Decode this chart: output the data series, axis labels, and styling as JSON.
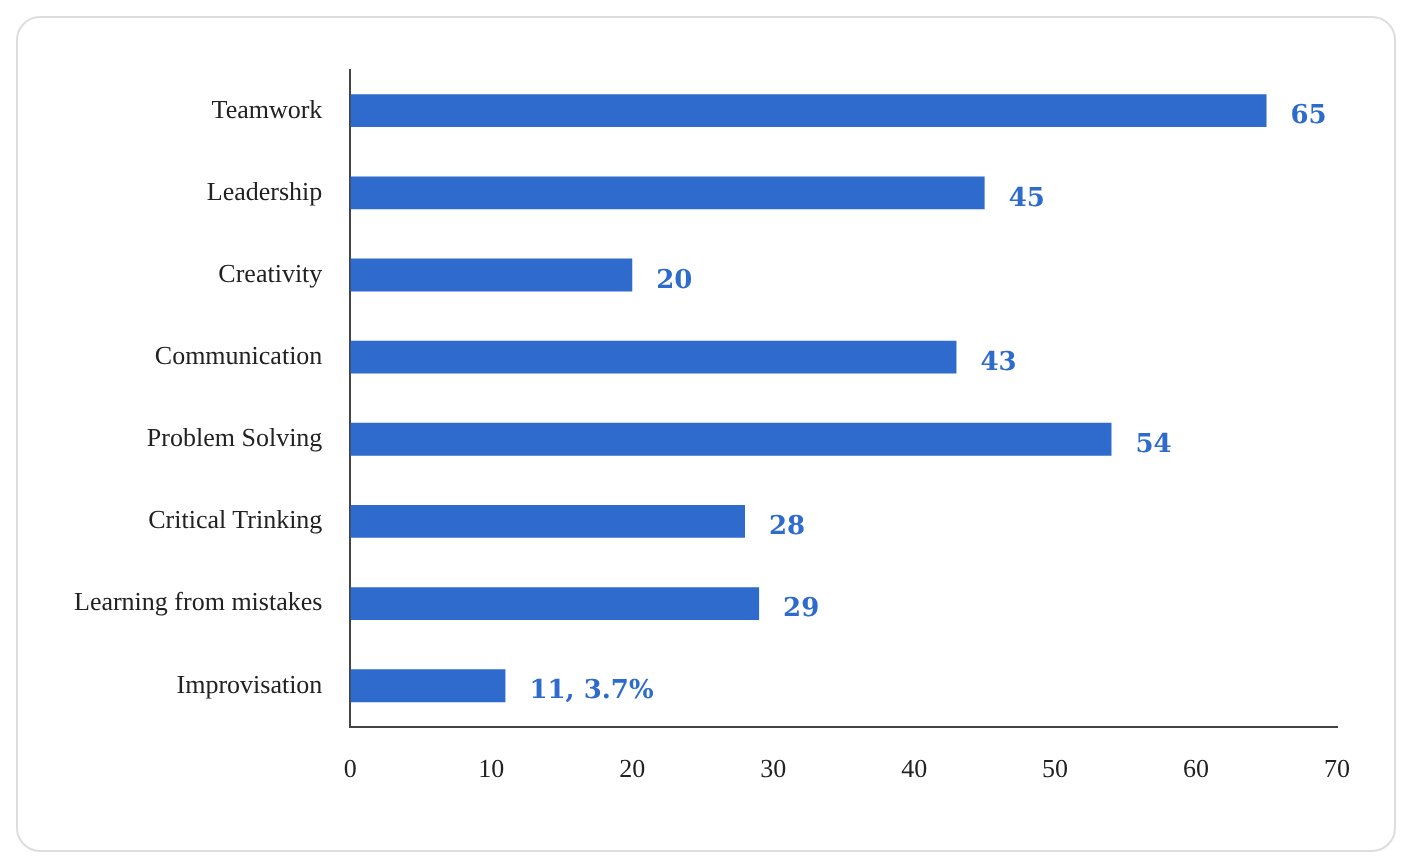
{
  "chart_data": {
    "type": "bar",
    "orientation": "horizontal",
    "categories": [
      "Teamwork",
      "Leadership",
      "Creativity",
      "Communication",
      "Problem Solving",
      "Critical Trinking",
      "Learning from mistakes",
      "Improvisation"
    ],
    "values": [
      65,
      45,
      20,
      43,
      54,
      28,
      29,
      11
    ],
    "value_labels": [
      "65",
      "45",
      "20",
      "43",
      "54",
      "28",
      "29",
      "11, 3.7%"
    ],
    "color": "#2e6bcc",
    "xlim": [
      0,
      70
    ],
    "xticks": [
      0,
      10,
      20,
      30,
      40,
      50,
      60,
      70
    ],
    "grid": false,
    "legend": false
  }
}
